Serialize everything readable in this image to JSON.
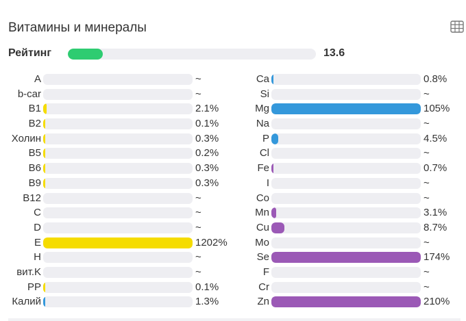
{
  "title": "Витамины и минералы",
  "table_icon": "table-grid-icon",
  "rating": {
    "label": "Рейтинг",
    "value": "13.6",
    "fill_fraction": 0.14,
    "color": "#2ecc71"
  },
  "colors": {
    "track": "#eeeef2",
    "yellow": "#f5dc00",
    "blue": "#3498db",
    "purple": "#9b59b6"
  },
  "vitamins": [
    {
      "name": "A",
      "value": "~",
      "fill": 0,
      "color": "yellow"
    },
    {
      "name": "b-car",
      "value": "~",
      "fill": 0,
      "color": "yellow"
    },
    {
      "name": "B1",
      "value": "2.1%",
      "fill": 0.021,
      "color": "yellow"
    },
    {
      "name": "B2",
      "value": "0.1%",
      "fill": 0.001,
      "color": "yellow"
    },
    {
      "name": "Холин",
      "value": "0.3%",
      "fill": 0.003,
      "color": "yellow"
    },
    {
      "name": "B5",
      "value": "0.2%",
      "fill": 0.002,
      "color": "yellow"
    },
    {
      "name": "B6",
      "value": "0.3%",
      "fill": 0.003,
      "color": "yellow"
    },
    {
      "name": "B9",
      "value": "0.3%",
      "fill": 0.003,
      "color": "yellow"
    },
    {
      "name": "B12",
      "value": "~",
      "fill": 0,
      "color": "yellow"
    },
    {
      "name": "C",
      "value": "~",
      "fill": 0,
      "color": "yellow"
    },
    {
      "name": "D",
      "value": "~",
      "fill": 0,
      "color": "yellow"
    },
    {
      "name": "E",
      "value": "1202%",
      "fill": 12.02,
      "color": "yellow"
    },
    {
      "name": "H",
      "value": "~",
      "fill": 0,
      "color": "yellow"
    },
    {
      "name": "вит.K",
      "value": "~",
      "fill": 0,
      "color": "yellow"
    },
    {
      "name": "PP",
      "value": "0.1%",
      "fill": 0.001,
      "color": "yellow"
    },
    {
      "name": "Калий",
      "value": "1.3%",
      "fill": 0.013,
      "color": "blue"
    }
  ],
  "minerals": [
    {
      "name": "Ca",
      "value": "0.8%",
      "fill": 0.008,
      "color": "blue"
    },
    {
      "name": "Si",
      "value": "~",
      "fill": 0,
      "color": "blue"
    },
    {
      "name": "Mg",
      "value": "105%",
      "fill": 1.05,
      "color": "blue"
    },
    {
      "name": "Na",
      "value": "~",
      "fill": 0,
      "color": "blue"
    },
    {
      "name": "P",
      "value": "4.5%",
      "fill": 0.045,
      "color": "blue"
    },
    {
      "name": "Cl",
      "value": "~",
      "fill": 0,
      "color": "blue"
    },
    {
      "name": "Fe",
      "value": "0.7%",
      "fill": 0.007,
      "color": "purple"
    },
    {
      "name": "I",
      "value": "~",
      "fill": 0,
      "color": "purple"
    },
    {
      "name": "Co",
      "value": "~",
      "fill": 0,
      "color": "purple"
    },
    {
      "name": "Mn",
      "value": "3.1%",
      "fill": 0.031,
      "color": "purple"
    },
    {
      "name": "Cu",
      "value": "8.7%",
      "fill": 0.087,
      "color": "purple"
    },
    {
      "name": "Mo",
      "value": "~",
      "fill": 0,
      "color": "purple"
    },
    {
      "name": "Se",
      "value": "174%",
      "fill": 1.74,
      "color": "purple"
    },
    {
      "name": "F",
      "value": "~",
      "fill": 0,
      "color": "purple"
    },
    {
      "name": "Cr",
      "value": "~",
      "fill": 0,
      "color": "purple"
    },
    {
      "name": "Zn",
      "value": "210%",
      "fill": 2.1,
      "color": "purple"
    }
  ]
}
